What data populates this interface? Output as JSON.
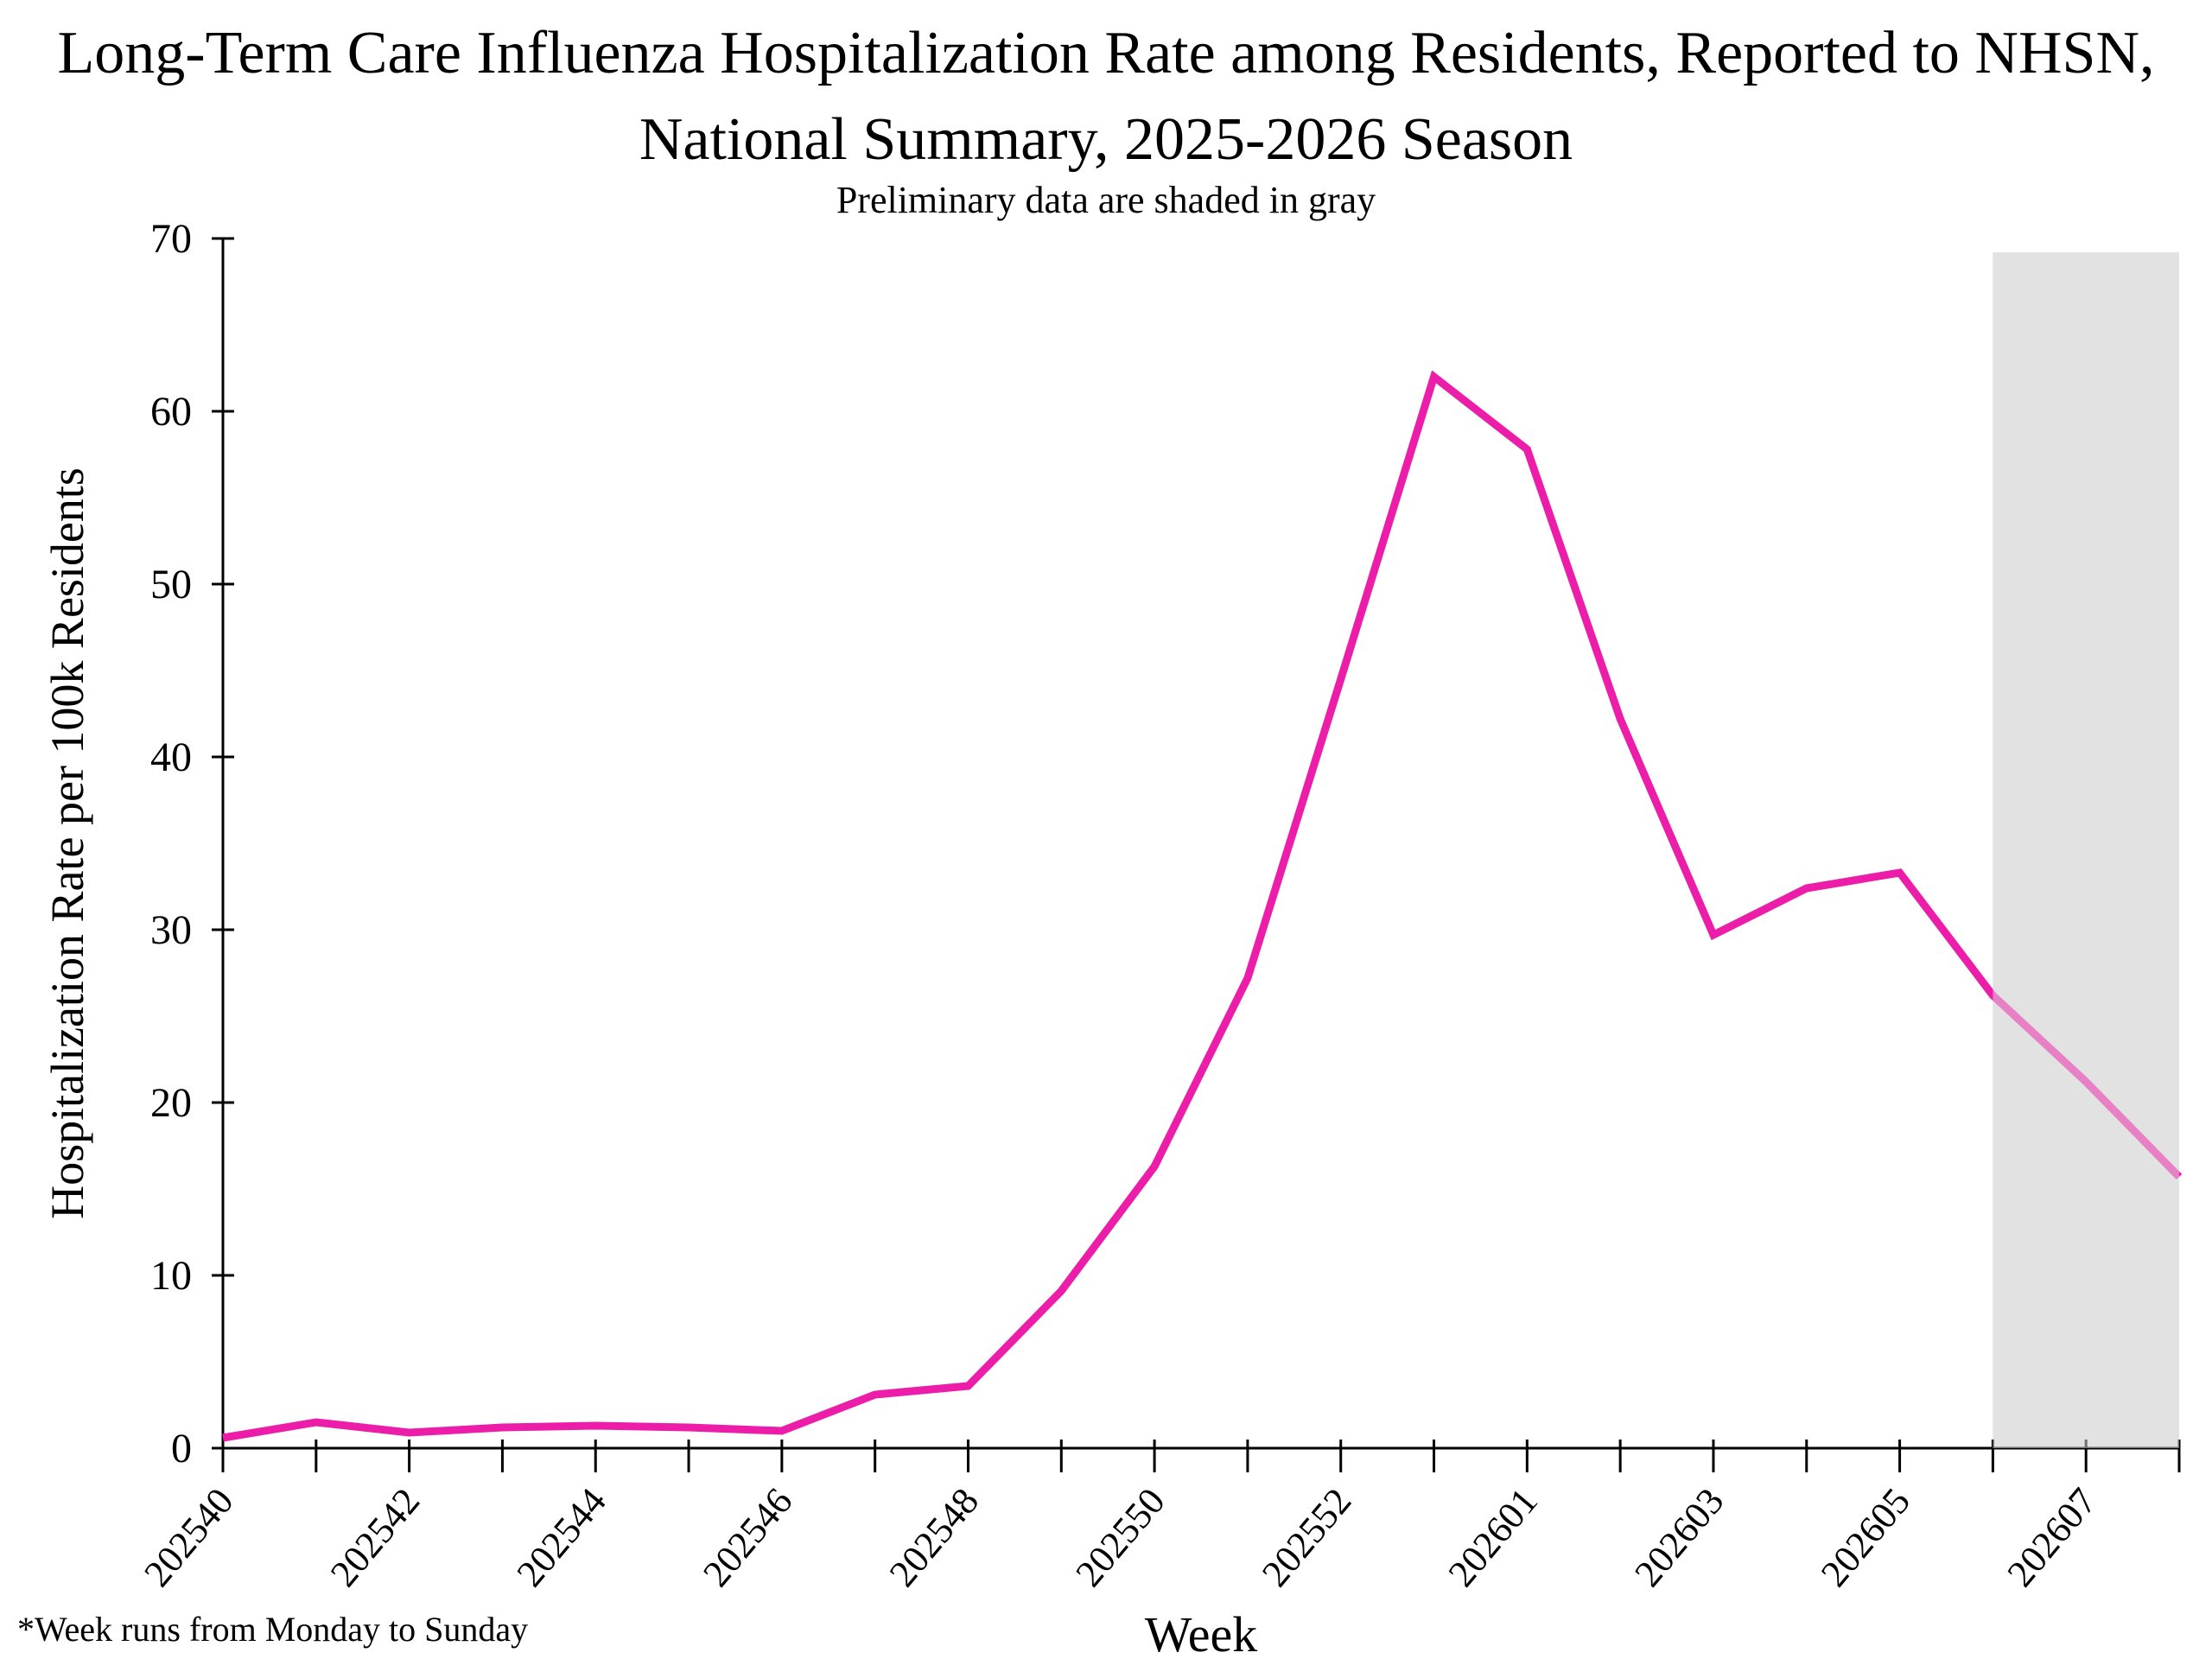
{
  "header": {
    "title_line1": "Long-Term Care Influenza Hospitalization Rate among Residents, Reported to NHSN,",
    "title_line2": "National Summary, 2025-2026 Season",
    "subtitle": "Preliminary data are shaded in gray"
  },
  "footnote": "*Week runs from Monday to Sunday",
  "chart_data": {
    "type": "line",
    "title": "Long-Term Care Influenza Hospitalization Rate among Residents, Reported to NHSN, National Summary, 2025-2026 Season",
    "subtitle": "Preliminary data are shaded in gray",
    "xlabel": "Week",
    "ylabel": "Hospitalization Rate per 100k Residents",
    "ylim": [
      0,
      70
    ],
    "ytick_interval": 10,
    "yticks": [
      0,
      10,
      20,
      30,
      40,
      50,
      60,
      70
    ],
    "x_tick_label_every": 2,
    "x_labeled_ticks": [
      "202540",
      "202542",
      "202544",
      "202546",
      "202548",
      "202550",
      "202552",
      "202601",
      "202603",
      "202605",
      "202607"
    ],
    "grid": false,
    "legend_position": "none",
    "series": [
      {
        "name": "Hospitalization Rate per 100k Residents",
        "color": "#EC1EA9",
        "x": [
          "202540",
          "202541",
          "202542",
          "202543",
          "202544",
          "202545",
          "202546",
          "202547",
          "202548",
          "202549",
          "202550",
          "202551",
          "202552",
          "202553",
          "202601",
          "202602",
          "202603",
          "202604",
          "202605",
          "202606",
          "202607",
          "202608"
        ],
        "values": [
          0.6,
          1.5,
          0.9,
          1.2,
          1.3,
          1.2,
          1.0,
          3.1,
          3.6,
          9.1,
          16.3,
          27.2,
          44.5,
          62.0,
          57.8,
          42.2,
          29.7,
          32.4,
          33.3,
          26.2,
          21.2,
          15.7
        ]
      }
    ],
    "preliminary_region": {
      "start_week": "202606",
      "end_week": "202608",
      "fill": "#E2E2E2",
      "note": "Preliminary data are shaded in gray"
    }
  }
}
